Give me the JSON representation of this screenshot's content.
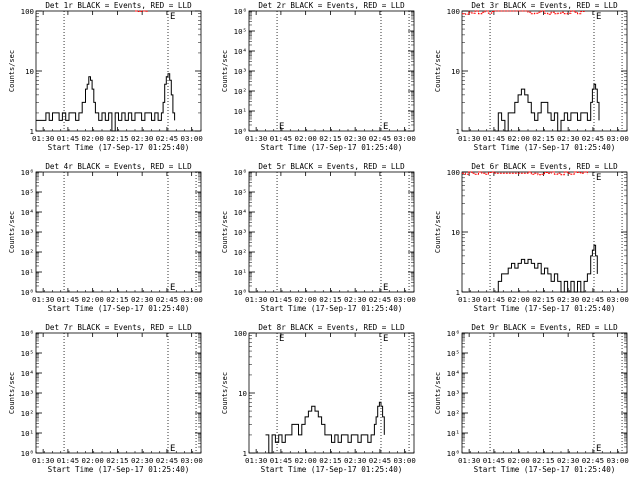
{
  "chart_data": [
    {
      "type": "line",
      "title": "Det 1r BLACK = Events, RED = LLD",
      "xlabel": "Start Time (17-Sep-17 01:25:40)",
      "ylabel": "Counts/sec",
      "yscale": "log",
      "ylim": [
        1,
        100
      ],
      "yticks": [
        "1",
        "10",
        "100"
      ],
      "xticks": [
        "01:30",
        "01:45",
        "02:00",
        "02:15",
        "02:30",
        "02:45",
        "03:00"
      ],
      "xlim_minutes": [
        0,
        100
      ],
      "markers_minutes": [
        17,
        80
      ],
      "marker_letters": [
        "",
        "E"
      ],
      "series": [
        {
          "name": "Events",
          "color": "#000000",
          "x": [
            0,
            4,
            6,
            8,
            10,
            12,
            14,
            16,
            18,
            20,
            22,
            24,
            26,
            28,
            30,
            31,
            32,
            33,
            34,
            35,
            36,
            37,
            38,
            40,
            42,
            44,
            46,
            48,
            50,
            52,
            54,
            56,
            58,
            60,
            62,
            64,
            66,
            68,
            70,
            72,
            74,
            76,
            77,
            78,
            79,
            80,
            81,
            82,
            83,
            84
          ],
          "y": [
            1.5,
            1.5,
            2,
            1.5,
            2,
            2,
            1.5,
            2,
            1.5,
            2,
            2,
            1.5,
            2,
            3,
            5,
            6,
            8,
            7,
            5,
            3,
            2,
            2,
            1.5,
            2,
            1.5,
            2,
            1,
            2,
            1.5,
            2,
            1.5,
            2,
            1.5,
            2,
            2,
            1.5,
            2,
            2,
            1.5,
            2,
            1.5,
            2,
            3,
            6,
            8,
            9,
            7,
            4,
            2,
            1.5
          ]
        },
        {
          "name": "LLD",
          "color": "#ff0000",
          "x": [
            60,
            62,
            64,
            66,
            68
          ],
          "y": [
            100,
            98,
            100,
            99,
            100
          ]
        }
      ]
    },
    {
      "type": "line",
      "title": "Det 2r BLACK = Events, RED = LLD",
      "xlabel": "Start Time (17-Sep-17 01:25:40)",
      "ylabel": "Counts/sec",
      "yscale": "log",
      "ylim": [
        1,
        1000000
      ],
      "yticks": [
        "10⁰",
        "10¹",
        "10²",
        "10³",
        "10⁴",
        "10⁵",
        "10⁶"
      ],
      "xticks": [
        "01:30",
        "01:45",
        "02:00",
        "02:15",
        "02:30",
        "02:45",
        "03:00"
      ],
      "xlim_minutes": [
        0,
        100
      ],
      "markers_minutes": [
        17,
        80,
        97
      ],
      "marker_letters": [
        "E",
        "E"
      ],
      "series": [
        {
          "name": "Events",
          "color": "#000000",
          "x": [],
          "y": []
        },
        {
          "name": "LLD",
          "color": "#ff0000",
          "x": [],
          "y": []
        }
      ]
    },
    {
      "type": "line",
      "title": "Det 3r BLACK = Events, RED = LLD",
      "xlabel": "Start Time (17-Sep-17 01:25:40)",
      "ylabel": "Counts/sec",
      "yscale": "log",
      "ylim": [
        1,
        100
      ],
      "yticks": [
        "1",
        "10",
        "100"
      ],
      "xticks": [
        "01:30",
        "01:45",
        "02:00",
        "02:15",
        "02:30",
        "02:45",
        "03:00"
      ],
      "xlim_minutes": [
        0,
        100
      ],
      "markers_minutes": [
        17,
        80,
        97
      ],
      "marker_letters": [
        "",
        "E"
      ],
      "series": [
        {
          "name": "Events",
          "color": "#000000",
          "x": [
            20,
            22,
            24,
            26,
            28,
            30,
            32,
            34,
            36,
            38,
            40,
            42,
            44,
            46,
            48,
            50,
            52,
            54,
            56,
            58,
            60,
            62,
            64,
            66,
            68,
            70,
            72,
            74,
            76,
            78,
            79,
            80,
            81,
            82,
            83
          ],
          "y": [
            1,
            2,
            1.5,
            1,
            2,
            2,
            3,
            4,
            5,
            4,
            3,
            2,
            1.5,
            2,
            3,
            3,
            2,
            1.5,
            2,
            1,
            1.5,
            2,
            1.5,
            2,
            2,
            1.5,
            2,
            2,
            1.5,
            3,
            5,
            6,
            5,
            3,
            1.5
          ]
        },
        {
          "name": "LLD",
          "color": "#ff0000",
          "x": [
            0,
            2,
            4,
            6,
            8,
            10,
            12,
            14,
            16,
            18,
            20,
            35,
            40,
            42,
            44,
            46,
            48,
            50,
            52,
            54,
            56,
            58,
            60,
            62,
            64,
            66,
            68,
            70,
            72,
            74
          ],
          "y": [
            90,
            88,
            95,
            92,
            100,
            90,
            95,
            100,
            92,
            98,
            100,
            100,
            95,
            90,
            92,
            95,
            100,
            92,
            88,
            95,
            90,
            92,
            95,
            90,
            92,
            100,
            95,
            90,
            98,
            100
          ]
        }
      ]
    },
    {
      "type": "line",
      "title": "Det 4r BLACK = Events, RED = LLD",
      "xlabel": "Start Time (17-Sep-17 01:25:40)",
      "ylabel": "Counts/sec",
      "yscale": "log",
      "ylim": [
        1,
        1000000
      ],
      "yticks": [
        "10⁰",
        "10¹",
        "10²",
        "10³",
        "10⁴",
        "10⁵",
        "10⁶"
      ],
      "xticks": [
        "01:30",
        "01:45",
        "02:00",
        "02:15",
        "02:30",
        "02:45",
        "03:00"
      ],
      "xlim_minutes": [
        0,
        100
      ],
      "markers_minutes": [
        17,
        80,
        97
      ],
      "marker_letters": [
        "",
        "E"
      ],
      "series": [
        {
          "name": "Events",
          "color": "#000000",
          "x": [],
          "y": []
        },
        {
          "name": "LLD",
          "color": "#ff0000",
          "x": [],
          "y": []
        }
      ]
    },
    {
      "type": "line",
      "title": "Det 5r BLACK = Events, RED = LLD",
      "xlabel": "Start Time (17-Sep-17 01:25:40)",
      "ylabel": "Counts/sec",
      "yscale": "log",
      "ylim": [
        1,
        1000000
      ],
      "yticks": [
        "10⁰",
        "10¹",
        "10²",
        "10³",
        "10⁴",
        "10⁵",
        "10⁶"
      ],
      "xticks": [
        "01:30",
        "01:45",
        "02:00",
        "02:15",
        "02:30",
        "02:45",
        "03:00"
      ],
      "xlim_minutes": [
        0,
        100
      ],
      "markers_minutes": [
        17,
        80,
        97
      ],
      "marker_letters": [
        "",
        "E"
      ],
      "series": [
        {
          "name": "Events",
          "color": "#000000",
          "x": [],
          "y": []
        },
        {
          "name": "LLD",
          "color": "#ff0000",
          "x": [],
          "y": []
        }
      ]
    },
    {
      "type": "line",
      "title": "Det 6r BLACK = Events, RED = LLD",
      "xlabel": "Start Time (17-Sep-17 01:25:40)",
      "ylabel": "Counts/sec",
      "yscale": "log",
      "ylim": [
        1,
        100
      ],
      "yticks": [
        "1",
        "10",
        "100"
      ],
      "xticks": [
        "01:30",
        "01:45",
        "02:00",
        "02:15",
        "02:30",
        "02:45",
        "03:00"
      ],
      "xlim_minutes": [
        0,
        100
      ],
      "markers_minutes": [
        17,
        80,
        97
      ],
      "marker_letters": [
        "",
        "E"
      ],
      "series": [
        {
          "name": "Events",
          "color": "#000000",
          "x": [
            20,
            22,
            24,
            26,
            28,
            30,
            32,
            34,
            36,
            38,
            40,
            42,
            44,
            46,
            48,
            50,
            52,
            54,
            56,
            58,
            60,
            62,
            64,
            66,
            68,
            70,
            72,
            74,
            76,
            78,
            79,
            80,
            81,
            82
          ],
          "y": [
            1,
            1.5,
            2,
            2,
            2.5,
            3,
            2.5,
            3,
            3.5,
            3,
            3.5,
            3,
            2.5,
            3,
            2,
            2.5,
            2,
            1.5,
            2,
            1.5,
            1,
            1.5,
            1,
            1.5,
            1,
            1.5,
            1,
            1.5,
            2,
            4,
            5,
            6,
            4,
            2
          ]
        },
        {
          "name": "LLD",
          "color": "#ff0000",
          "x": [
            0,
            2,
            4,
            6,
            8,
            10,
            12,
            14,
            16,
            18,
            20,
            40,
            42,
            44,
            46,
            48,
            50,
            52,
            54,
            56,
            58,
            60,
            62,
            64,
            66,
            68,
            70,
            72,
            74,
            76
          ],
          "y": [
            95,
            92,
            100,
            95,
            92,
            100,
            95,
            92,
            98,
            100,
            95,
            100,
            92,
            95,
            90,
            92,
            98,
            95,
            100,
            92,
            95,
            90,
            100,
            95,
            92,
            100,
            98,
            95,
            100,
            92
          ]
        }
      ]
    },
    {
      "type": "line",
      "title": "Det 7r BLACK = Events, RED = LLD",
      "xlabel": "Start Time (17-Sep-17 01:25:40)",
      "ylabel": "Counts/sec",
      "yscale": "log",
      "ylim": [
        1,
        1000000
      ],
      "yticks": [
        "10⁰",
        "10¹",
        "10²",
        "10³",
        "10⁴",
        "10⁵",
        "10⁶"
      ],
      "xticks": [
        "01:30",
        "01:45",
        "02:00",
        "02:15",
        "02:30",
        "02:45",
        "03:00"
      ],
      "xlim_minutes": [
        0,
        100
      ],
      "markers_minutes": [
        17,
        80,
        97
      ],
      "marker_letters": [
        "",
        "E"
      ],
      "series": [
        {
          "name": "Events",
          "color": "#000000",
          "x": [],
          "y": []
        },
        {
          "name": "LLD",
          "color": "#ff0000",
          "x": [],
          "y": []
        }
      ]
    },
    {
      "type": "line",
      "title": "Det 8r BLACK = Events, RED = LLD",
      "xlabel": "Start Time (17-Sep-17 01:25:40)",
      "ylabel": "Counts/sec",
      "yscale": "log",
      "ylim": [
        1,
        100
      ],
      "yticks": [
        "1",
        "10",
        "100"
      ],
      "xticks": [
        "01:30",
        "01:45",
        "02:00",
        "02:15",
        "02:30",
        "02:45",
        "03:00"
      ],
      "xlim_minutes": [
        0,
        100
      ],
      "markers_minutes": [
        17,
        80,
        97
      ],
      "marker_letters": [
        "E",
        "E"
      ],
      "series": [
        {
          "name": "Events",
          "color": "#000000",
          "x": [
            10,
            12,
            14,
            16,
            18,
            20,
            22,
            24,
            26,
            28,
            30,
            32,
            34,
            36,
            38,
            40,
            42,
            44,
            46,
            48,
            50,
            52,
            54,
            56,
            58,
            60,
            62,
            64,
            66,
            68,
            70,
            72,
            74,
            76,
            77,
            78,
            79,
            80,
            81,
            82
          ],
          "y": [
            2,
            1,
            2,
            1.5,
            2,
            1.5,
            2,
            2,
            3,
            3,
            2,
            3,
            4,
            5,
            6,
            5,
            4,
            3,
            2,
            2,
            1.5,
            2,
            1.5,
            2,
            2,
            1.5,
            2,
            2,
            1.5,
            2,
            2,
            1.5,
            2,
            3,
            4,
            6,
            7,
            6,
            4,
            2
          ]
        },
        {
          "name": "LLD",
          "color": "#ff0000",
          "x": [],
          "y": []
        }
      ]
    },
    {
      "type": "line",
      "title": "Det 9r BLACK = Events, RED = LLD",
      "xlabel": "Start Time (17-Sep-17 01:25:40)",
      "ylabel": "Counts/sec",
      "yscale": "log",
      "ylim": [
        1,
        1000000
      ],
      "yticks": [
        "10⁰",
        "10¹",
        "10²",
        "10³",
        "10⁴",
        "10⁵",
        "10⁶"
      ],
      "xticks": [
        "01:30",
        "01:45",
        "02:00",
        "02:15",
        "02:30",
        "02:45",
        "03:00"
      ],
      "xlim_minutes": [
        0,
        100
      ],
      "markers_minutes": [
        17,
        80,
        97
      ],
      "marker_letters": [
        "",
        "E"
      ],
      "series": [
        {
          "name": "Events",
          "color": "#000000",
          "x": [],
          "y": []
        },
        {
          "name": "LLD",
          "color": "#ff0000",
          "x": [],
          "y": []
        }
      ]
    }
  ]
}
